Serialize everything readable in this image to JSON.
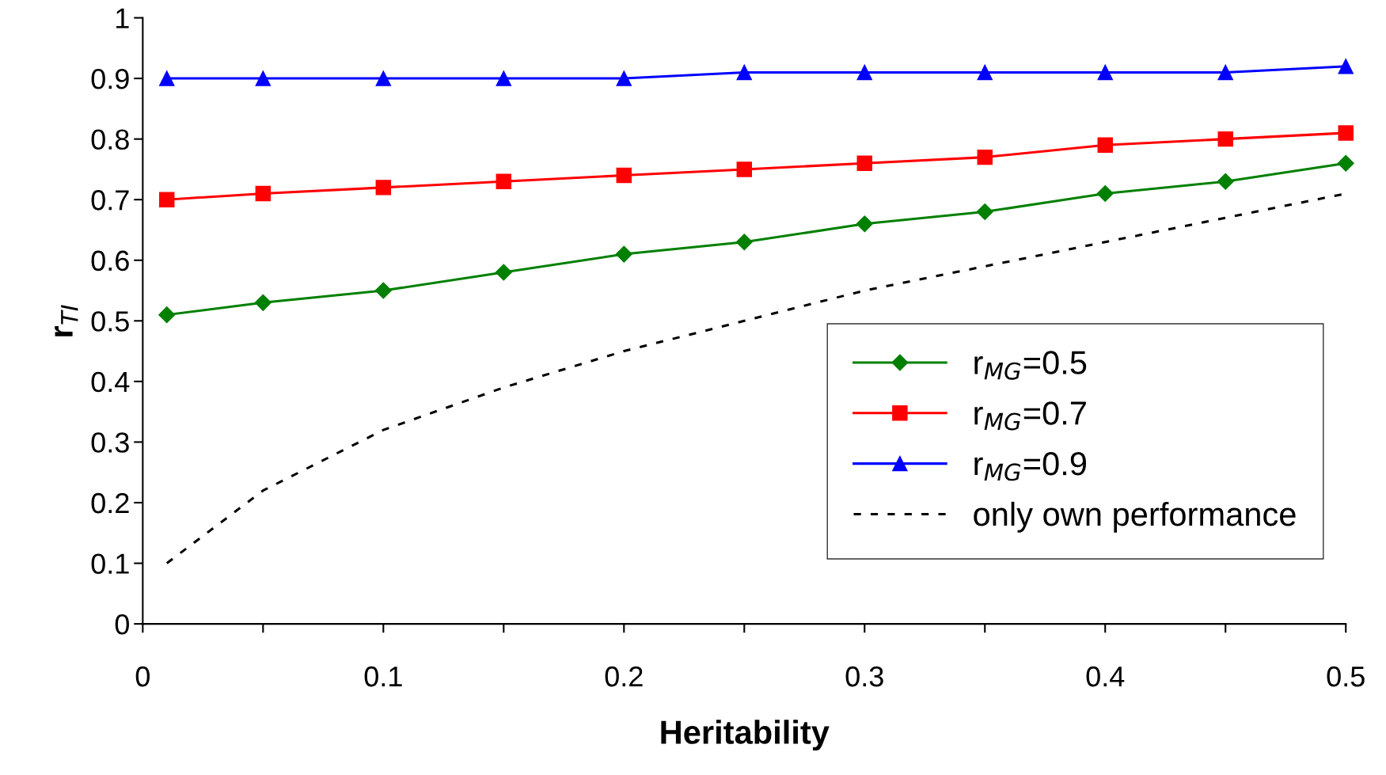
{
  "chart_data": {
    "type": "line",
    "xlabel": "Heritability",
    "ylabel": "r$_{TI}$",
    "x": [
      0.01,
      0.05,
      0.1,
      0.15,
      0.2,
      0.25,
      0.3,
      0.35,
      0.4,
      0.45,
      0.5
    ],
    "series": [
      {
        "name": "r$_{MG}$=0.5",
        "color": "#008000",
        "marker": "diamond",
        "line_style": "solid",
        "values": [
          0.51,
          0.53,
          0.55,
          0.58,
          0.61,
          0.63,
          0.66,
          0.68,
          0.71,
          0.73,
          0.76
        ]
      },
      {
        "name": "r$_{MG}$=0.7",
        "color": "#ff0000",
        "marker": "square",
        "line_style": "solid",
        "values": [
          0.7,
          0.71,
          0.72,
          0.73,
          0.74,
          0.75,
          0.76,
          0.77,
          0.79,
          0.8,
          0.81
        ]
      },
      {
        "name": "r$_{MG}$=0.9",
        "color": "#0000ff",
        "marker": "triangle",
        "line_style": "solid",
        "values": [
          0.9,
          0.9,
          0.9,
          0.9,
          0.9,
          0.91,
          0.91,
          0.91,
          0.91,
          0.91,
          0.92
        ]
      },
      {
        "name": "only own performance",
        "color": "#000000",
        "marker": "none",
        "line_style": "dotted",
        "values": [
          0.1,
          0.22,
          0.32,
          0.39,
          0.45,
          0.5,
          0.55,
          0.59,
          0.63,
          0.67,
          0.71
        ]
      }
    ],
    "xlim": [
      0,
      0.5
    ],
    "ylim": [
      0,
      1
    ],
    "xticks": [
      0,
      {
        "value": 0.05,
        "label": null
      },
      0.1,
      {
        "value": 0.15,
        "label": null
      },
      0.2,
      {
        "value": 0.25,
        "label": null
      },
      0.3,
      {
        "value": 0.35,
        "label": null
      },
      0.4,
      {
        "value": 0.45,
        "label": null
      },
      0.5
    ],
    "yticks": [
      0,
      0.1,
      0.2,
      0.3,
      0.4,
      0.5,
      0.6,
      0.7,
      0.8,
      0.9,
      1
    ],
    "grid": false,
    "legend": "bottom right"
  }
}
